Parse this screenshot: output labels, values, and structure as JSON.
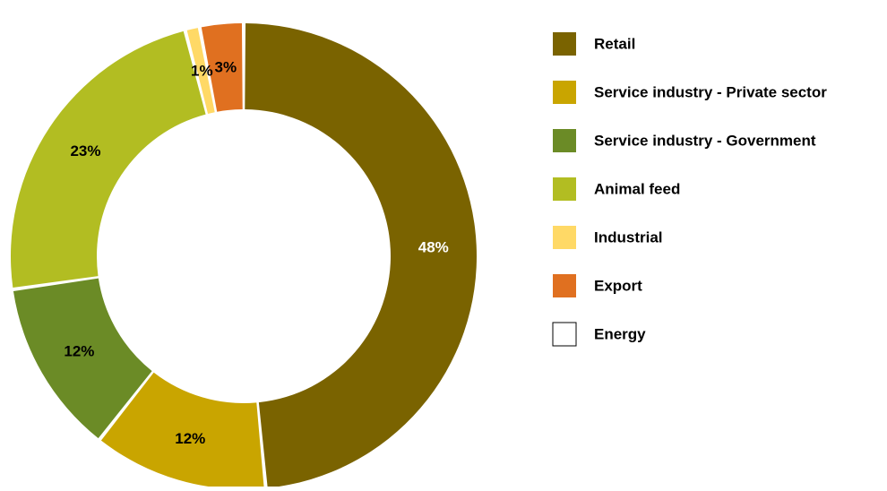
{
  "chart_data": {
    "type": "pie",
    "style": "donut",
    "title": "",
    "legend_position": "right",
    "slices": [
      {
        "label": "Retail",
        "value": 48,
        "display": "48%",
        "color": "#7a6300",
        "label_color": "#ffffff"
      },
      {
        "label": "Service industry - Private sector",
        "value": 12,
        "display": "12%",
        "color": "#c9a500",
        "label_color": "#000000"
      },
      {
        "label": "Service industry - Government",
        "value": 12,
        "display": "12%",
        "color": "#6b8b26",
        "label_color": "#000000"
      },
      {
        "label": "Animal feed",
        "value": 23,
        "display": "23%",
        "color": "#b2bd22",
        "label_color": "#000000"
      },
      {
        "label": "Industrial",
        "value": 1,
        "display": "1%",
        "color": "#ffd966",
        "label_color": "#000000"
      },
      {
        "label": "Export",
        "value": 3,
        "display": "3%",
        "color": "#e07020",
        "label_color": "#000000"
      },
      {
        "label": "Energy",
        "value": 0,
        "display": "",
        "color": "#ffffff",
        "label_color": "#000000"
      }
    ]
  }
}
